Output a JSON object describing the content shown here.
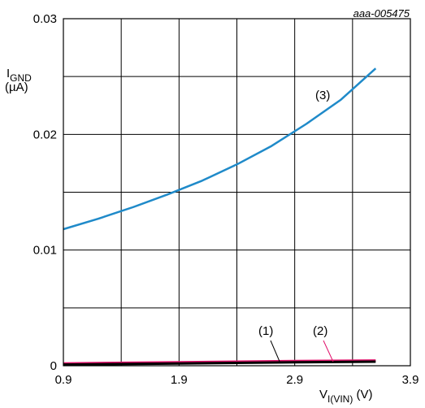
{
  "chart_data": {
    "type": "line",
    "annotation": "aaa-005475",
    "ylabel": {
      "main": "I",
      "sub": "GND",
      "unit": "(µA)"
    },
    "xlabel": {
      "main": "V",
      "sub": "I(VIN)",
      "unit": " (V)"
    },
    "xlim": [
      0.9,
      3.9
    ],
    "ylim": [
      0,
      0.03
    ],
    "xticks": [
      0.9,
      1.9,
      2.9,
      3.9
    ],
    "xtick_labels": [
      "0.9",
      "1.9",
      "2.9",
      "3.9"
    ],
    "yticks": [
      0,
      0.01,
      0.02,
      0.03
    ],
    "ytick_labels": [
      "0",
      "0.01",
      "0.02",
      "0.03"
    ],
    "grid": true,
    "series": [
      {
        "name": "(1)",
        "color": "#000000",
        "x": [
          0.9,
          1.9,
          2.9,
          3.6
        ],
        "y": [
          0.0001,
          0.0002,
          0.0003,
          0.00035
        ]
      },
      {
        "name": "(2)",
        "color": "#e0106a",
        "x": [
          0.9,
          1.9,
          2.9,
          3.6
        ],
        "y": [
          0.0002,
          0.0003,
          0.0004,
          0.00045
        ]
      },
      {
        "name": "(3)",
        "color": "#1f8ac9",
        "x": [
          0.9,
          1.2,
          1.5,
          1.8,
          2.1,
          2.4,
          2.7,
          3.0,
          3.3,
          3.6
        ],
        "y": [
          0.0118,
          0.0127,
          0.0137,
          0.0148,
          0.016,
          0.0174,
          0.019,
          0.0209,
          0.023,
          0.0257
        ]
      }
    ]
  }
}
